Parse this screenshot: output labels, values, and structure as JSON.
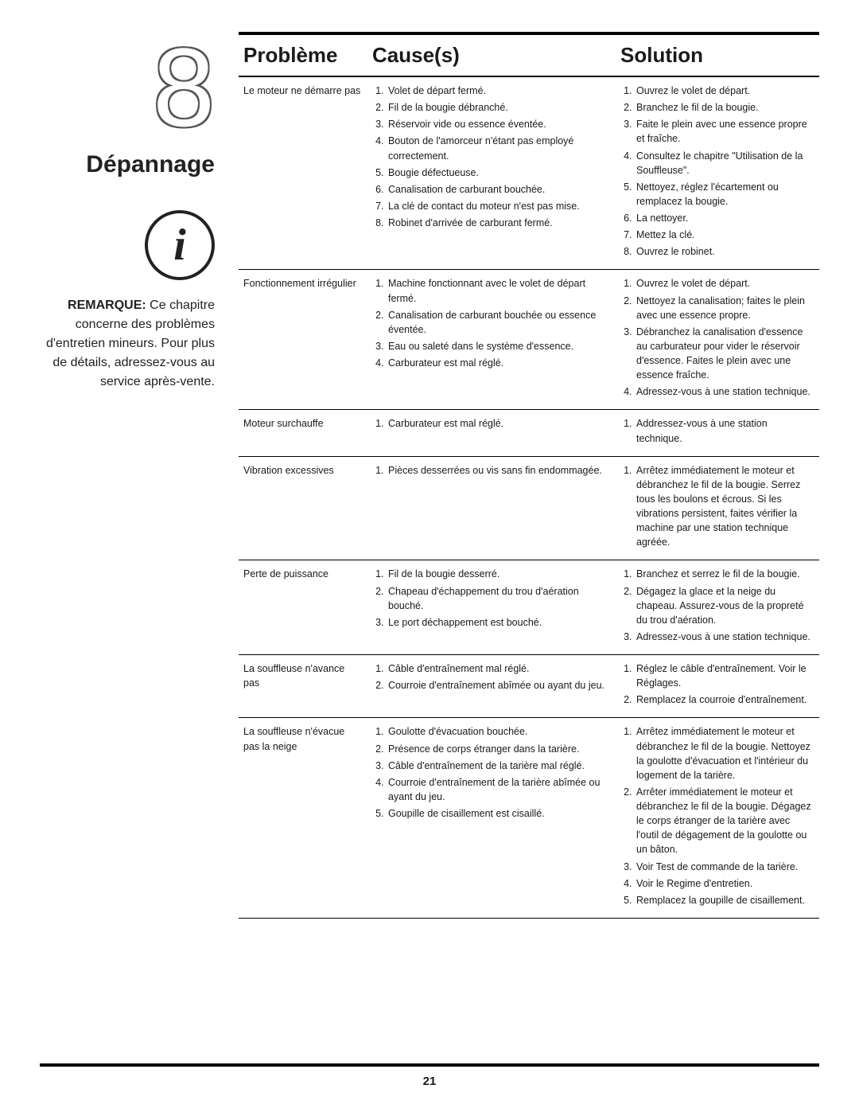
{
  "chapter": {
    "number": "8",
    "title": "Dépannage"
  },
  "info_icon_glyph": "i",
  "remark": {
    "label": "REMARQUE:",
    "text": "Ce chapitre concerne des problèmes d'entretien mineurs. Pour plus de détails, adressez-vous au service après-vente."
  },
  "headers": {
    "problem": "Problème",
    "cause": "Cause(s)",
    "solution": "Solution"
  },
  "rows": [
    {
      "problem": "Le moteur ne démarre pas",
      "causes": [
        "Volet de départ fermé.",
        "Fil de la bougie débranché.",
        "Réservoir vide ou essence éventée.",
        "Bouton de l'amorceur n'étant pas employé correctement.",
        "Bougie défectueuse.",
        "Canalisation de carburant bouchée.",
        "La clé de contact du moteur n'est pas mise.",
        "Robinet d'arrivée de carburant fermé."
      ],
      "solutions": [
        "Ouvrez le volet de départ.",
        "Branchez le fil de la bougie.",
        "Faite le plein avec une essence propre et fraîche.",
        "Consultez le chapitre \"Utilisation de la Souffleuse\".",
        "Nettoyez, réglez l'écartement ou remplacez la bougie.",
        "La nettoyer.",
        "Mettez la clé.",
        "Ouvrez le robinet."
      ]
    },
    {
      "problem": "Fonctionnement irrégulier",
      "causes": [
        "Machine fonctionnant avec le volet de départ fermé.",
        "Canalisation de carburant bouchée ou essence éventée.",
        "Eau ou saleté dans le système d'essence.",
        "Carburateur est mal réglé."
      ],
      "solutions": [
        "Ouvrez le volet de départ.",
        "Nettoyez la canalisation; faites le plein avec une essence propre.",
        "Débranchez la canalisation d'essence au carburateur pour vider le réservoir d'essence. Faites le plein avec une essence fraîche.",
        "Adressez-vous à une station technique."
      ]
    },
    {
      "problem": "Moteur surchauffe",
      "causes": [
        "Carburateur est mal réglé."
      ],
      "solutions": [
        "Addressez-vous à une station technique."
      ]
    },
    {
      "problem": "Vibration excessives",
      "causes": [
        "Pièces desserrées ou vis sans fin endommagée."
      ],
      "solutions": [
        "Arrêtez immédiatement le moteur et débranchez le fil de la bougie. Serrez tous les boulons et écrous. Si les vibrations persistent, faites vérifier la machine par une station technique agréée."
      ]
    },
    {
      "problem": "Perte de puissance",
      "causes": [
        "Fil de la bougie desserré.",
        "Chapeau d'échappement du trou d'aération bouché.",
        "Le port déchappement est bouché."
      ],
      "solutions": [
        "Branchez et serrez le fil de la bougie.",
        "Dégagez la glace et la neige du chapeau. Assurez-vous de la propreté du trou d'aération.",
        "Adressez-vous à une station technique."
      ]
    },
    {
      "problem": "La souffleuse n'avance pas",
      "causes": [
        "Câble d'entraînement mal réglé.",
        "Courroie d'entraînement abîmée ou ayant du jeu."
      ],
      "solutions": [
        "Réglez le câble d'entraînement. Voir le Réglages.",
        "Remplacez la courroie d'entraînement."
      ]
    },
    {
      "problem": "La souffleuse n'évacue pas la neige",
      "causes": [
        "Goulotte d'évacuation bouchée.",
        "Présence de corps étranger dans la tarière.",
        "Câble d'entraînement de la tarière mal réglé.",
        "Courroie d'entraînement de la tarière abîmée ou ayant du jeu.",
        "Goupille de cisaillement est cisaillé."
      ],
      "solutions": [
        "Arrêtez immédiatement le moteur et débranchez le fil de la bougie. Nettoyez la goulotte d'évacuation et l'intérieur du logement de la tarière.",
        "Arrêter immédiatement le moteur et débranchez le fil de la bougie. Dégagez le corps étranger de la tarière avec l'outil de dégagement de la goulotte ou un bâton.",
        "Voir Test de commande de la tarière.",
        "Voir le Regime d'entretien.",
        "Remplacez la goupille de cisaillement."
      ]
    }
  ],
  "page_number": "21"
}
